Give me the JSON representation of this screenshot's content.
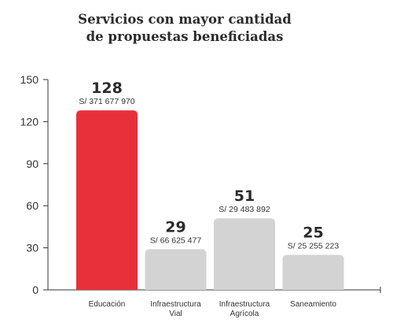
{
  "chart_data": {
    "type": "bar",
    "title_line1": "Servicios con mayor cantidad",
    "title_line2": "de propuestas beneficiadas",
    "categories": [
      {
        "line1": "Educación",
        "line2": ""
      },
      {
        "line1": "Infraestructura",
        "line2": "Vial"
      },
      {
        "line1": "Infraestructura",
        "line2": "Agrícola"
      },
      {
        "line1": "Saneamiento",
        "line2": ""
      }
    ],
    "values": [
      128,
      29,
      51,
      25
    ],
    "value_labels": [
      "128",
      "29",
      "51",
      "25"
    ],
    "amount_labels": [
      "S/ 371 677 970",
      "S/ 66 625 477",
      "S/ 29 483 892",
      "S/ 25 255 223"
    ],
    "bar_colors": [
      "#e8303a",
      "#d3d3d3",
      "#d3d3d3",
      "#d3d3d3"
    ],
    "yticks": [
      "0",
      "30",
      "60",
      "90",
      "120",
      "150"
    ],
    "ylim": [
      0,
      150
    ],
    "grid": false,
    "xlabel": "",
    "ylabel": ""
  }
}
